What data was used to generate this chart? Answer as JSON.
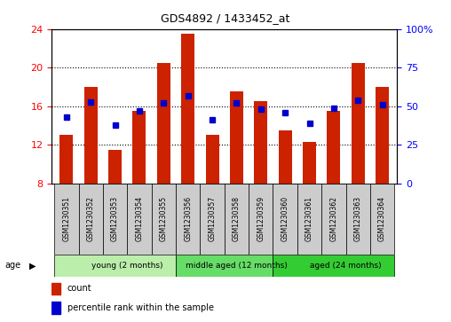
{
  "title": "GDS4892 / 1433452_at",
  "samples": [
    "GSM1230351",
    "GSM1230352",
    "GSM1230353",
    "GSM1230354",
    "GSM1230355",
    "GSM1230356",
    "GSM1230357",
    "GSM1230358",
    "GSM1230359",
    "GSM1230360",
    "GSM1230361",
    "GSM1230362",
    "GSM1230363",
    "GSM1230364"
  ],
  "count": [
    13.0,
    18.0,
    11.5,
    15.5,
    20.5,
    23.5,
    13.0,
    17.5,
    16.5,
    13.5,
    12.3,
    15.5,
    20.5,
    18.0
  ],
  "percentile": [
    43,
    53,
    38,
    47,
    52,
    57,
    41,
    52,
    48,
    46,
    39,
    49,
    54,
    51
  ],
  "ylim_left": [
    8,
    24
  ],
  "ylim_right": [
    0,
    100
  ],
  "yticks_left": [
    8,
    12,
    16,
    20,
    24
  ],
  "yticks_right": [
    0,
    25,
    50,
    75,
    100
  ],
  "bar_color": "#cc2200",
  "dot_color": "#0000cc",
  "bar_width": 0.55,
  "groups": [
    {
      "label": "young (2 months)",
      "start": 0,
      "end": 5
    },
    {
      "label": "middle aged (12 months)",
      "start": 5,
      "end": 9
    },
    {
      "label": "aged (24 months)",
      "start": 9,
      "end": 14
    }
  ],
  "group_colors": [
    "#bbeeaa",
    "#66dd66",
    "#33cc33"
  ],
  "grid_color": "#000000",
  "bg_color": "#ffffff",
  "cell_color": "#cccccc",
  "legend_count": "count",
  "legend_pct": "percentile rank within the sample"
}
